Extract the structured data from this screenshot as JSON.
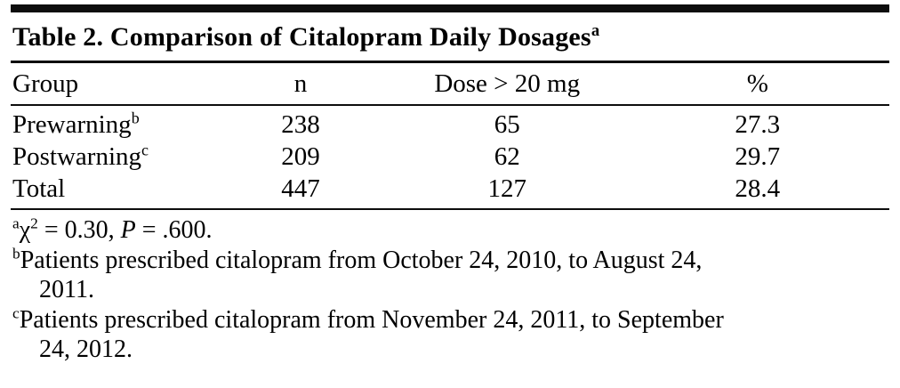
{
  "table": {
    "title": "Table 2. Comparison of Citalopram Daily Dosages",
    "title_sup": "a",
    "headers": [
      "Group",
      "n",
      "Dose > 20 mg",
      "%"
    ],
    "rows": [
      {
        "group": "Prewarning",
        "group_sup": "b",
        "n": "238",
        "dose": "65",
        "pct": "27.3"
      },
      {
        "group": "Postwarning",
        "group_sup": "c",
        "n": "209",
        "dose": "62",
        "pct": "29.7"
      },
      {
        "group": "Total",
        "group_sup": "",
        "n": "447",
        "dose": "127",
        "pct": "28.4"
      }
    ]
  },
  "footnotes": {
    "a": {
      "marker": "a",
      "chi": "χ",
      "chi_sup": "2",
      "mid": " = 0.30, ",
      "p": "P",
      "tail": " = .600."
    },
    "b": {
      "marker": "b",
      "line1": "Patients prescribed citalopram from October 24, 2010, to August 24,",
      "line2": "2011."
    },
    "c": {
      "marker": "c",
      "line1": "Patients prescribed citalopram from November 24, 2011, to September",
      "line2": "24, 2012."
    }
  }
}
